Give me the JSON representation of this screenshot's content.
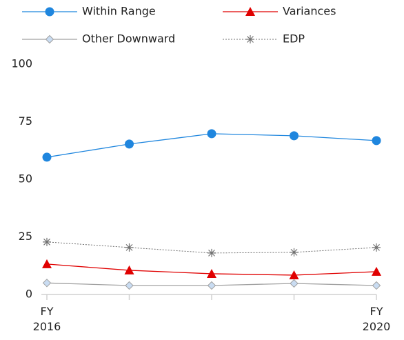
{
  "chart_data": {
    "type": "line",
    "categories": [
      "FY 2016",
      null,
      null,
      null,
      "FY 2020"
    ],
    "series": [
      {
        "name": "Within Range",
        "color": "#1f86de",
        "marker": "circle",
        "dash": false,
        "values": [
          59.6,
          65.3,
          69.8,
          68.9,
          66.8
        ]
      },
      {
        "name": "Variances",
        "color": "#e00000",
        "marker": "triangle",
        "dash": false,
        "values": [
          13.2,
          10.5,
          9.0,
          8.4,
          9.9
        ]
      },
      {
        "name": "Other Downward",
        "color": "#a0a0a0",
        "marker": "diamond",
        "dash": false,
        "values": [
          5.0,
          3.9,
          3.9,
          4.8,
          3.9
        ]
      },
      {
        "name": "EDP",
        "color": "#707070",
        "marker": "star",
        "dash": true,
        "values": [
          22.8,
          20.4,
          18.0,
          18.3,
          20.4
        ]
      }
    ],
    "ylim": [
      0,
      100
    ],
    "yticks": [
      0,
      25,
      50,
      75,
      100
    ],
    "grid": false
  }
}
